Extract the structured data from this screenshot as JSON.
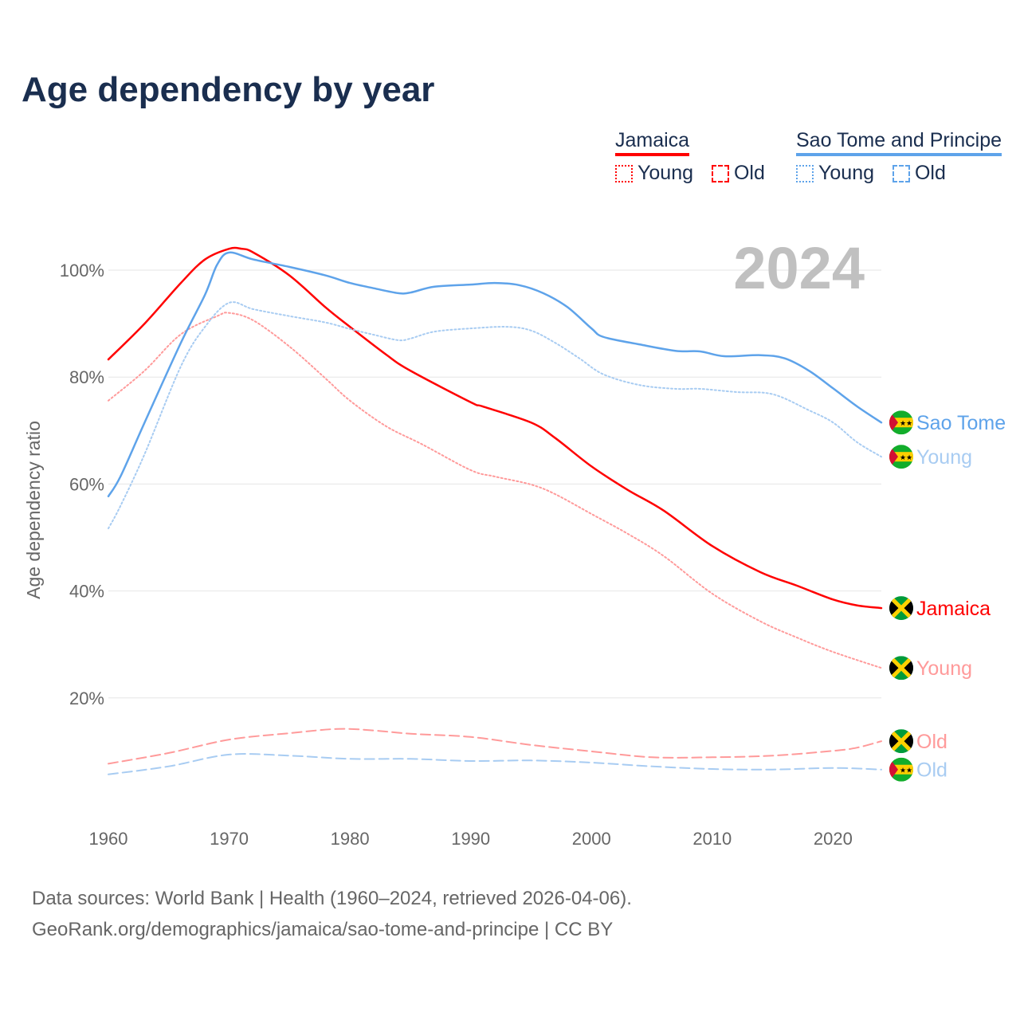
{
  "chart_data": {
    "type": "line",
    "title": "Age dependency by year",
    "xlabel": "",
    "ylabel": "Age dependency ratio",
    "xlim": [
      1960,
      2024
    ],
    "ylim": [
      0,
      106
    ],
    "xticks": [
      1960,
      1970,
      1980,
      1990,
      2000,
      2010,
      2020
    ],
    "yticks": [
      20,
      40,
      60,
      80,
      100
    ],
    "ytick_labels": [
      "20%",
      "40%",
      "60%",
      "80%",
      "100%"
    ],
    "grid": true,
    "year_label": "2024",
    "legend": {
      "groups": [
        {
          "name": "Jamaica",
          "color": "#ff0000",
          "items": [
            "Young",
            "Old"
          ]
        },
        {
          "name": "Sao Tome and Principe",
          "color": "#5ea3ea",
          "items": [
            "Young",
            "Old"
          ]
        }
      ],
      "placement": "top-right"
    },
    "series": [
      {
        "name": "Jamaica",
        "country": "Jamaica",
        "kind": "total",
        "color": "#ff0000",
        "style": "solid",
        "end_label": "Jamaica",
        "points": [
          [
            1960,
            83.3
          ],
          [
            1963,
            90
          ],
          [
            1966,
            97.6
          ],
          [
            1968,
            102
          ],
          [
            1970,
            104
          ],
          [
            1971,
            104
          ],
          [
            1972,
            103.3
          ],
          [
            1975,
            99
          ],
          [
            1978,
            93
          ],
          [
            1980,
            89.4
          ],
          [
            1983,
            84.2
          ],
          [
            1985,
            81.2
          ],
          [
            1990,
            75.3
          ],
          [
            1991,
            74.5
          ],
          [
            1995,
            71.5
          ],
          [
            1997,
            68.6
          ],
          [
            2000,
            63.3
          ],
          [
            2003,
            58.9
          ],
          [
            2006,
            55
          ],
          [
            2010,
            48.4
          ],
          [
            2014,
            43.5
          ],
          [
            2017,
            41
          ],
          [
            2020,
            38.4
          ],
          [
            2022,
            37.3
          ],
          [
            2024,
            36.8
          ]
        ]
      },
      {
        "name": "Jamaica Young",
        "country": "Jamaica",
        "kind": "young",
        "color": "#ff9a9a",
        "style": "dotted",
        "end_label": "Young",
        "points": [
          [
            1960,
            75.6
          ],
          [
            1963,
            81.2
          ],
          [
            1966,
            88
          ],
          [
            1969,
            91.4
          ],
          [
            1970,
            92
          ],
          [
            1972,
            90.6
          ],
          [
            1975,
            85.7
          ],
          [
            1978,
            79.7
          ],
          [
            1980,
            75.6
          ],
          [
            1983,
            70.8
          ],
          [
            1986,
            67.4
          ],
          [
            1990,
            62.6
          ],
          [
            1992,
            61.4
          ],
          [
            1995,
            59.9
          ],
          [
            1997,
            58.1
          ],
          [
            2000,
            54.4
          ],
          [
            2003,
            50.7
          ],
          [
            2006,
            46.5
          ],
          [
            2010,
            39.5
          ],
          [
            2014,
            34.3
          ],
          [
            2017,
            31.3
          ],
          [
            2020,
            28.6
          ],
          [
            2024,
            25.6
          ]
        ]
      },
      {
        "name": "Jamaica Old",
        "country": "Jamaica",
        "kind": "old",
        "color": "#ff9a9a",
        "style": "dashed",
        "end_label": "Old",
        "points": [
          [
            1960,
            7.7
          ],
          [
            1965,
            9.7
          ],
          [
            1970,
            12.2
          ],
          [
            1975,
            13.4
          ],
          [
            1979,
            14.2
          ],
          [
            1982,
            13.9
          ],
          [
            1985,
            13.3
          ],
          [
            1990,
            12.7
          ],
          [
            1995,
            11.2
          ],
          [
            2000,
            10
          ],
          [
            2005,
            8.9
          ],
          [
            2010,
            8.9
          ],
          [
            2015,
            9.2
          ],
          [
            2020,
            10.1
          ],
          [
            2022,
            10.7
          ],
          [
            2024,
            11.9
          ]
        ]
      },
      {
        "name": "Sao Tome and Principe",
        "country": "Sao Tome and Principe",
        "kind": "total",
        "color": "#5ea3ea",
        "style": "solid",
        "end_label": "Sao Tome",
        "points": [
          [
            1960,
            57.7
          ],
          [
            1961,
            61.4
          ],
          [
            1963,
            71.5
          ],
          [
            1966,
            86.4
          ],
          [
            1968,
            95.4
          ],
          [
            1969,
            101
          ],
          [
            1970,
            103.3
          ],
          [
            1972,
            102
          ],
          [
            1975,
            100.6
          ],
          [
            1978,
            99
          ],
          [
            1980,
            97.6
          ],
          [
            1982,
            96.6
          ],
          [
            1984,
            95.7
          ],
          [
            1985,
            95.8
          ],
          [
            1987,
            96.9
          ],
          [
            1990,
            97.3
          ],
          [
            1992,
            97.6
          ],
          [
            1994,
            97.2
          ],
          [
            1996,
            95.7
          ],
          [
            1998,
            93.1
          ],
          [
            2000,
            89.1
          ],
          [
            2001,
            87.5
          ],
          [
            2004,
            86.1
          ],
          [
            2007,
            84.9
          ],
          [
            2009,
            84.8
          ],
          [
            2011,
            83.9
          ],
          [
            2014,
            84.1
          ],
          [
            2016,
            83.5
          ],
          [
            2018,
            81.2
          ],
          [
            2020,
            77.9
          ],
          [
            2022,
            74.5
          ],
          [
            2024,
            71.5
          ]
        ]
      },
      {
        "name": "Sao Tome and Principe Young",
        "country": "Sao Tome and Principe",
        "kind": "young",
        "color": "#a8ccf2",
        "style": "dotted",
        "end_label": "Young",
        "points": [
          [
            1960,
            51.7
          ],
          [
            1961,
            55.9
          ],
          [
            1963,
            65.6
          ],
          [
            1966,
            82
          ],
          [
            1968,
            89.4
          ],
          [
            1970,
            93.9
          ],
          [
            1972,
            92.7
          ],
          [
            1975,
            91.4
          ],
          [
            1978,
            90.2
          ],
          [
            1980,
            89
          ],
          [
            1982,
            87.9
          ],
          [
            1984,
            86.9
          ],
          [
            1985,
            87.2
          ],
          [
            1987,
            88.5
          ],
          [
            1990,
            89.1
          ],
          [
            1993,
            89.4
          ],
          [
            1995,
            88.7
          ],
          [
            1997,
            86.4
          ],
          [
            1999,
            83.5
          ],
          [
            2001,
            80.5
          ],
          [
            2004,
            78.5
          ],
          [
            2007,
            77.8
          ],
          [
            2009,
            77.8
          ],
          [
            2012,
            77.2
          ],
          [
            2015,
            76.8
          ],
          [
            2018,
            73.8
          ],
          [
            2020,
            71.5
          ],
          [
            2022,
            67.8
          ],
          [
            2024,
            65.1
          ]
        ]
      },
      {
        "name": "Sao Tome and Principe Old",
        "country": "Sao Tome and Principe",
        "kind": "old",
        "color": "#a8ccf2",
        "style": "dashed",
        "end_label": "Old",
        "points": [
          [
            1960,
            5.7
          ],
          [
            1965,
            7.2
          ],
          [
            1970,
            9.4
          ],
          [
            1975,
            9.2
          ],
          [
            1980,
            8.6
          ],
          [
            1985,
            8.6
          ],
          [
            1990,
            8.2
          ],
          [
            1995,
            8.3
          ],
          [
            2000,
            7.9
          ],
          [
            2005,
            7.2
          ],
          [
            2010,
            6.7
          ],
          [
            2015,
            6.6
          ],
          [
            2020,
            6.9
          ],
          [
            2024,
            6.6
          ]
        ]
      }
    ]
  },
  "source": {
    "line1": "Data sources: World Bank | Health (1960–2024, retrieved 2026-04-06).",
    "line2": "GeoRank.org/demographics/jamaica/sao-tome-and-principe | CC BY"
  }
}
